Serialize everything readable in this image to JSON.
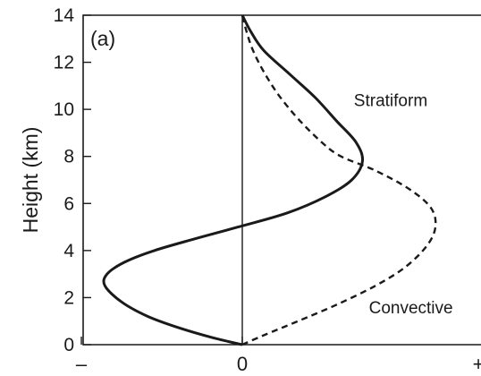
{
  "chart_data": {
    "type": "line",
    "panel_label": "(a)",
    "ylabel": "Height (km)",
    "xlabel": "",
    "ylim": [
      0,
      14
    ],
    "xlim": [
      -1,
      1
    ],
    "yticks": [
      0,
      2,
      4,
      6,
      8,
      10,
      12,
      14
    ],
    "xtick_labels": [
      "–",
      "0",
      "+"
    ],
    "grid": false,
    "legend": "none",
    "series": [
      {
        "name": "Stratiform",
        "style": "solid",
        "color": "#1a1a1a",
        "x": [
          0,
          -0.14,
          -0.29,
          -0.44,
          -0.56,
          -0.64,
          -0.63,
          -0.55,
          -0.41,
          -0.22,
          -0.02,
          0.21,
          0.39,
          0.51,
          0.56,
          0.53,
          0.44,
          0.34,
          0.22,
          0.1,
          0.04,
          0
        ],
        "y": [
          0,
          0.3,
          0.7,
          1.2,
          1.8,
          2.5,
          3.0,
          3.5,
          4.0,
          4.5,
          5.0,
          5.6,
          6.3,
          7.0,
          7.8,
          8.6,
          9.5,
          10.5,
          11.5,
          12.5,
          13.3,
          14
        ]
      },
      {
        "name": "Convective",
        "style": "dashed",
        "color": "#1a1a1a",
        "x": [
          0,
          0.1,
          0.26,
          0.44,
          0.62,
          0.76,
          0.86,
          0.9,
          0.88,
          0.78,
          0.62,
          0.46,
          0.37,
          0.26,
          0.17,
          0.1,
          0.05,
          0.02,
          0
        ],
        "y": [
          0,
          0.4,
          1.0,
          1.7,
          2.5,
          3.3,
          4.2,
          5.0,
          5.8,
          6.6,
          7.4,
          8.0,
          8.6,
          9.6,
          10.6,
          11.6,
          12.5,
          13.3,
          14
        ]
      }
    ],
    "annotations": [
      {
        "text": "Stratiform",
        "x": 0.52,
        "y": 10.4
      },
      {
        "text": "Convective",
        "x": 0.59,
        "y": 1.6
      }
    ]
  }
}
